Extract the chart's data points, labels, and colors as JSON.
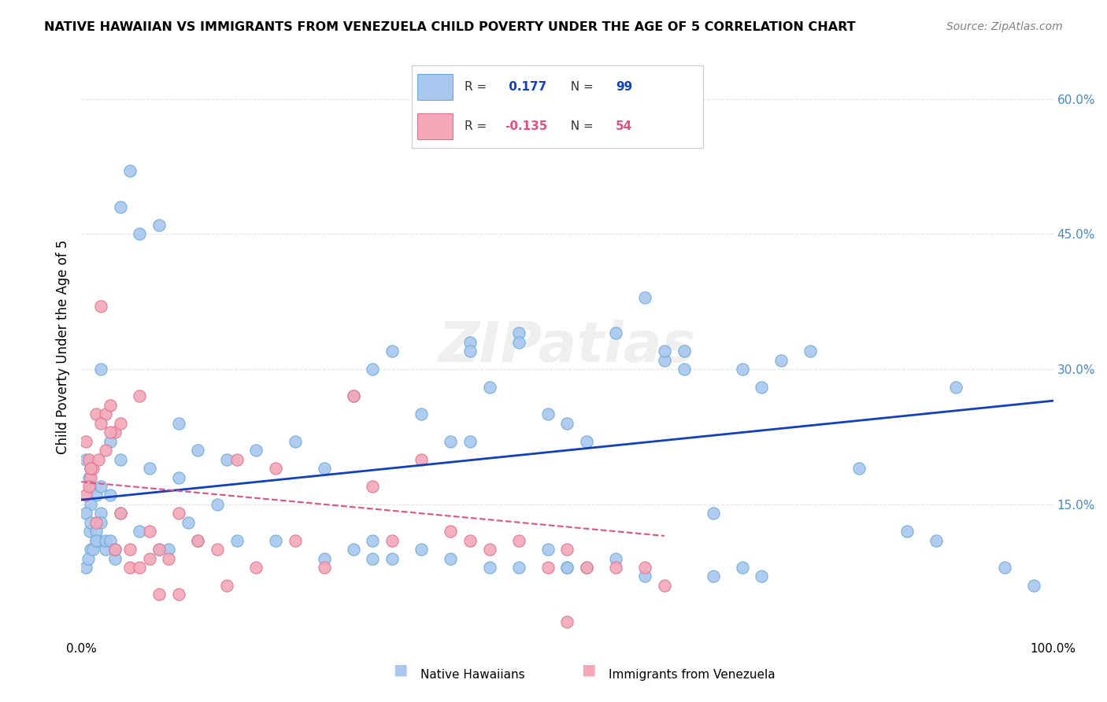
{
  "title": "NATIVE HAWAIIAN VS IMMIGRANTS FROM VENEZUELA CHILD POVERTY UNDER THE AGE OF 5 CORRELATION CHART",
  "source": "Source: ZipAtlas.com",
  "xlabel": "",
  "ylabel": "Child Poverty Under the Age of 5",
  "xlim": [
    0,
    1.0
  ],
  "ylim": [
    0,
    0.65
  ],
  "yticks": [
    0.15,
    0.3,
    0.45,
    0.6
  ],
  "ytick_labels": [
    "15.0%",
    "30.0%",
    "45.0%",
    "60.0%"
  ],
  "xticks": [
    0.0,
    1.0
  ],
  "xtick_labels": [
    "0.0%",
    "100.0%"
  ],
  "blue_R": 0.177,
  "blue_N": 99,
  "pink_R": -0.135,
  "pink_N": 54,
  "blue_color": "#a8c8f0",
  "blue_edge": "#6aaad4",
  "pink_color": "#f4a8b8",
  "pink_edge": "#e07090",
  "blue_line_color": "#1040c0",
  "pink_line_color": "#e05080",
  "watermark": "ZIPatlas",
  "legend_label_blue": "Native Hawaiians",
  "legend_label_pink": "Immigrants from Venezuela",
  "blue_scatter_x": [
    0.02,
    0.04,
    0.03,
    0.01,
    0.01,
    0.005,
    0.008,
    0.015,
    0.02,
    0.01,
    0.03,
    0.05,
    0.02,
    0.015,
    0.01,
    0.005,
    0.007,
    0.009,
    0.012,
    0.018,
    0.025,
    0.035,
    0.04,
    0.06,
    0.08,
    0.1,
    0.12,
    0.15,
    0.18,
    0.2,
    0.22,
    0.25,
    0.28,
    0.3,
    0.32,
    0.35,
    0.38,
    0.4,
    0.4,
    0.42,
    0.45,
    0.45,
    0.48,
    0.5,
    0.5,
    0.52,
    0.55,
    0.58,
    0.6,
    0.62,
    0.65,
    0.68,
    0.7,
    0.72,
    0.75,
    0.8,
    0.85,
    0.88,
    0.9,
    0.95,
    0.98,
    0.25,
    0.28,
    0.3,
    0.3,
    0.32,
    0.35,
    0.38,
    0.4,
    0.42,
    0.45,
    0.48,
    0.5,
    0.52,
    0.55,
    0.58,
    0.6,
    0.62,
    0.65,
    0.68,
    0.7,
    0.005,
    0.01,
    0.015,
    0.015,
    0.02,
    0.025,
    0.03,
    0.035,
    0.04,
    0.06,
    0.07,
    0.08,
    0.09,
    0.1,
    0.11,
    0.12,
    0.14,
    0.16
  ],
  "blue_scatter_y": [
    0.3,
    0.48,
    0.22,
    0.19,
    0.17,
    0.2,
    0.18,
    0.16,
    0.17,
    0.15,
    0.16,
    0.52,
    0.14,
    0.11,
    0.1,
    0.08,
    0.09,
    0.12,
    0.1,
    0.11,
    0.1,
    0.09,
    0.2,
    0.45,
    0.46,
    0.24,
    0.21,
    0.2,
    0.21,
    0.11,
    0.22,
    0.19,
    0.27,
    0.3,
    0.32,
    0.25,
    0.22,
    0.33,
    0.32,
    0.28,
    0.34,
    0.33,
    0.25,
    0.24,
    0.08,
    0.22,
    0.34,
    0.38,
    0.31,
    0.32,
    0.14,
    0.08,
    0.28,
    0.31,
    0.32,
    0.19,
    0.12,
    0.11,
    0.28,
    0.08,
    0.06,
    0.09,
    0.1,
    0.09,
    0.11,
    0.09,
    0.1,
    0.09,
    0.22,
    0.08,
    0.08,
    0.1,
    0.08,
    0.08,
    0.09,
    0.07,
    0.32,
    0.3,
    0.07,
    0.3,
    0.07,
    0.14,
    0.13,
    0.12,
    0.11,
    0.13,
    0.11,
    0.11,
    0.1,
    0.14,
    0.12,
    0.19,
    0.1,
    0.1,
    0.18,
    0.13,
    0.11,
    0.15,
    0.11
  ],
  "pink_scatter_x": [
    0.005,
    0.008,
    0.01,
    0.012,
    0.015,
    0.018,
    0.02,
    0.025,
    0.03,
    0.035,
    0.04,
    0.05,
    0.06,
    0.07,
    0.08,
    0.09,
    0.1,
    0.12,
    0.14,
    0.16,
    0.18,
    0.2,
    0.22,
    0.25,
    0.28,
    0.3,
    0.32,
    0.35,
    0.38,
    0.4,
    0.42,
    0.45,
    0.48,
    0.5,
    0.52,
    0.55,
    0.58,
    0.6,
    0.005,
    0.008,
    0.01,
    0.015,
    0.02,
    0.025,
    0.03,
    0.035,
    0.04,
    0.05,
    0.06,
    0.07,
    0.08,
    0.1,
    0.15,
    0.5
  ],
  "pink_scatter_y": [
    0.22,
    0.2,
    0.18,
    0.19,
    0.25,
    0.2,
    0.37,
    0.25,
    0.26,
    0.23,
    0.24,
    0.1,
    0.27,
    0.12,
    0.1,
    0.09,
    0.14,
    0.11,
    0.1,
    0.2,
    0.08,
    0.19,
    0.11,
    0.08,
    0.27,
    0.17,
    0.11,
    0.2,
    0.12,
    0.11,
    0.1,
    0.11,
    0.08,
    0.1,
    0.08,
    0.08,
    0.08,
    0.06,
    0.16,
    0.17,
    0.19,
    0.13,
    0.24,
    0.21,
    0.23,
    0.1,
    0.14,
    0.08,
    0.08,
    0.09,
    0.05,
    0.05,
    0.06,
    0.02
  ],
  "blue_trend_x": [
    0.0,
    1.0
  ],
  "blue_trend_y": [
    0.155,
    0.265
  ],
  "pink_trend_x": [
    0.0,
    0.6
  ],
  "pink_trend_y": [
    0.175,
    0.115
  ],
  "background_color": "#ffffff",
  "grid_color": "#dddddd"
}
